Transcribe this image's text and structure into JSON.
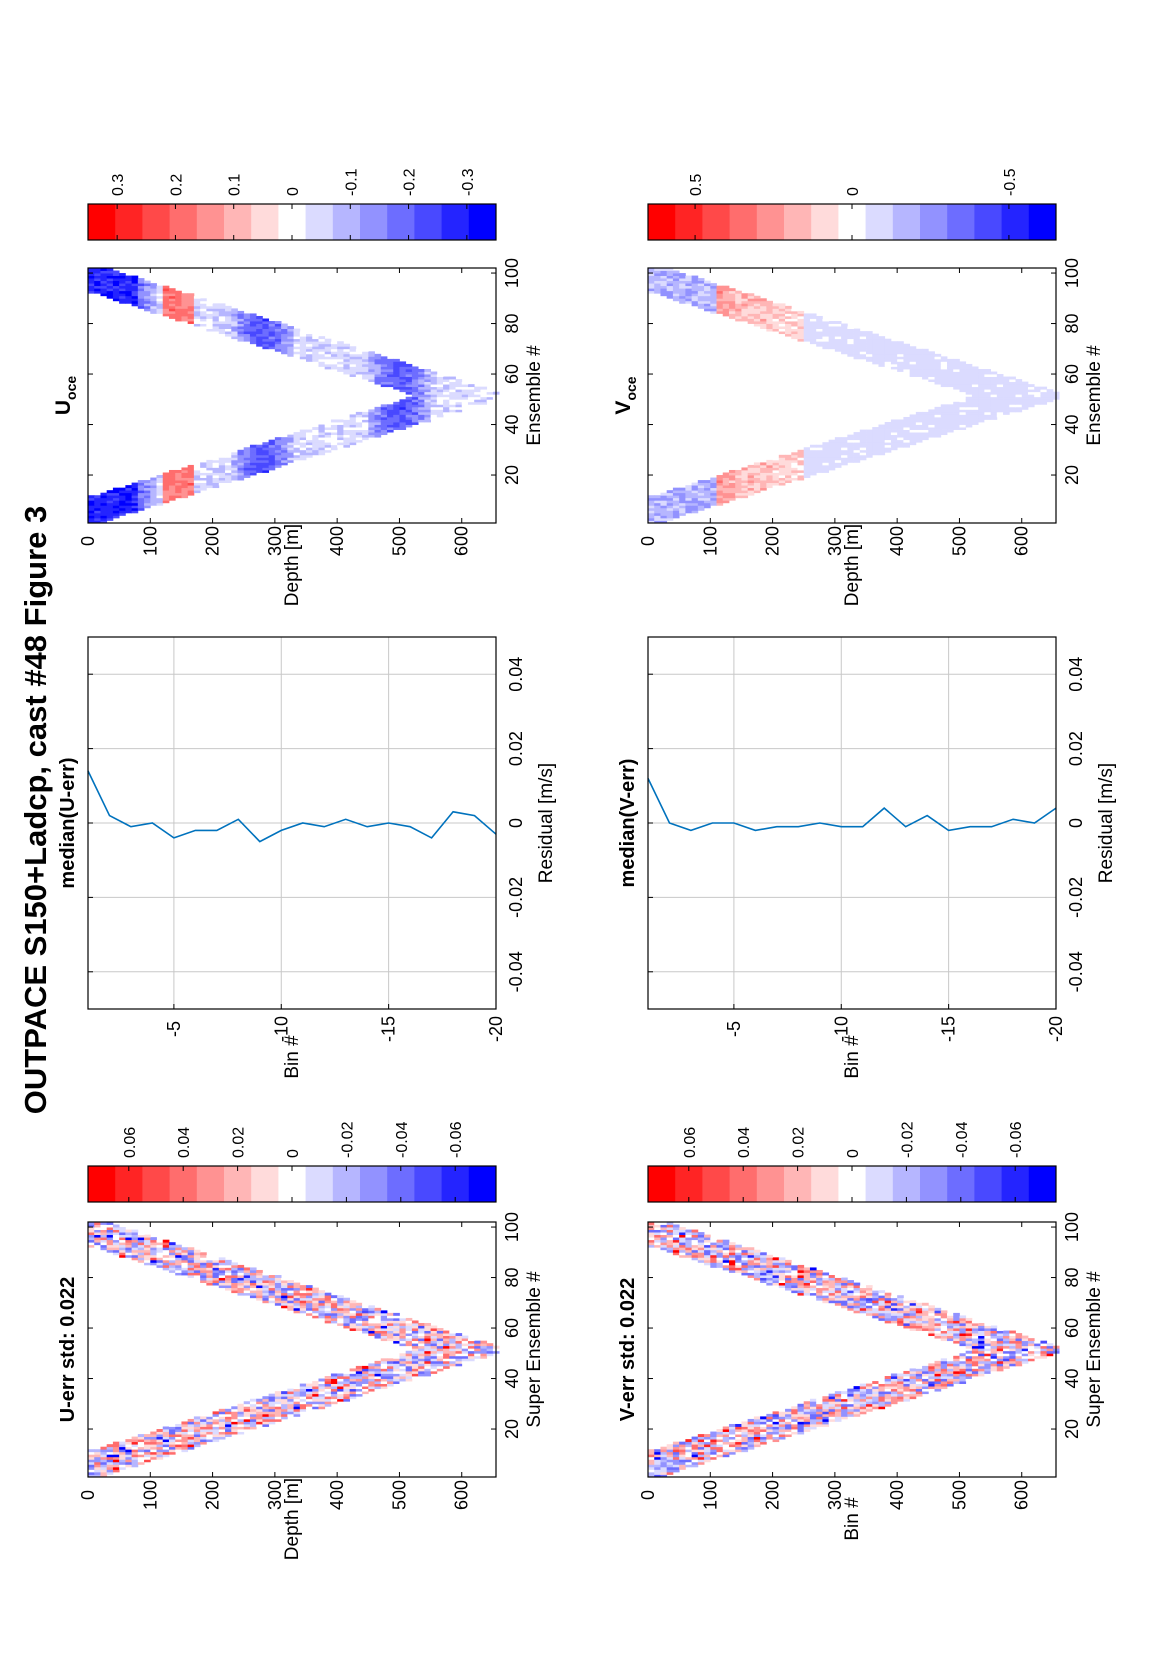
{
  "figure_title": "OUTPACE S150+Ladcp, cast #48  Figure 3",
  "colors": {
    "red": "#ff0000",
    "blue": "#0000ff",
    "line": "#0072bd",
    "grid": "#c8c8c8"
  },
  "chart_data": [
    {
      "id": "u-err-map",
      "type": "heatmap",
      "title": "U-err std: 0.022",
      "xlabel": "Super Ensemble #",
      "ylabel": "Depth [m]",
      "xticks": [
        20,
        40,
        60,
        80,
        100
      ],
      "yticks": [
        0,
        100,
        200,
        300,
        400,
        500,
        600
      ],
      "xlim": [
        1,
        102
      ],
      "ylim": [
        0,
        655
      ],
      "pattern": {
        "turn_ensemble": 51,
        "max_depth": 650,
        "band_width": 130
      }
    },
    {
      "id": "u-err-colorbar",
      "type": "colorbar",
      "range": [
        -0.075,
        0.075
      ],
      "ticks": [
        0.06,
        0.04,
        0.02,
        0,
        -0.02,
        -0.04,
        -0.06
      ],
      "tick_labels": [
        "0.06",
        "0.04",
        "0.02",
        "0",
        "-0.02",
        "-0.04",
        "-0.06"
      ]
    },
    {
      "id": "median-u-err",
      "type": "line",
      "title": "median(U-err)",
      "xlabel": "Residual [m/s]",
      "ylabel": "Bin #",
      "xticks": [
        -0.04,
        -0.02,
        0,
        0.02,
        0.04
      ],
      "yticks": [
        -5,
        -10,
        -15,
        -20
      ],
      "xlim": [
        -0.05,
        0.05
      ],
      "ylim": [
        -1,
        -20
      ],
      "grid": true,
      "series": [
        {
          "bins": [
            -1,
            -2,
            -3,
            -4,
            -5,
            -6,
            -7,
            -8,
            -9,
            -10,
            -11,
            -12,
            -13,
            -14,
            -15,
            -16,
            -17,
            -18,
            -19,
            -20
          ],
          "values": [
            0.014,
            0.002,
            -0.001,
            0.0,
            -0.004,
            -0.002,
            -0.002,
            0.001,
            -0.005,
            -0.002,
            0.0,
            -0.001,
            0.001,
            -0.001,
            0.0,
            -0.001,
            -0.004,
            0.003,
            0.002,
            -0.003
          ]
        }
      ]
    },
    {
      "id": "u-oce-map",
      "type": "heatmap",
      "title": "U",
      "title_subscript": "oce",
      "xlabel": "Ensemble #",
      "ylabel": "Depth [m]",
      "xticks": [
        20,
        40,
        60,
        80,
        100
      ],
      "yticks": [
        0,
        100,
        200,
        300,
        400,
        500,
        600
      ],
      "xlim": [
        1,
        102
      ],
      "ylim": [
        0,
        655
      ],
      "pattern": {
        "turn_ensemble": 51,
        "max_depth": 650,
        "band_width": 130
      }
    },
    {
      "id": "u-oce-colorbar",
      "type": "colorbar",
      "range": [
        -0.35,
        0.35
      ],
      "ticks": [
        0.3,
        0.2,
        0.1,
        0,
        -0.1,
        -0.2,
        -0.3
      ],
      "tick_labels": [
        "0.3",
        "0.2",
        "0.1",
        "0",
        "-0.1",
        "-0.2",
        "-0.3"
      ]
    },
    {
      "id": "v-err-map",
      "type": "heatmap",
      "title": "V-err std: 0.022",
      "xlabel": "Super Ensemble #",
      "ylabel": "Bin #",
      "xticks": [
        20,
        40,
        60,
        80,
        100
      ],
      "yticks": [
        0,
        100,
        200,
        300,
        400,
        500,
        600
      ],
      "xlim": [
        1,
        102
      ],
      "ylim": [
        0,
        655
      ],
      "pattern": {
        "turn_ensemble": 51,
        "max_depth": 650,
        "band_width": 130
      }
    },
    {
      "id": "v-err-colorbar",
      "type": "colorbar",
      "range": [
        -0.075,
        0.075
      ],
      "ticks": [
        0.06,
        0.04,
        0.02,
        0,
        -0.02,
        -0.04,
        -0.06
      ],
      "tick_labels": [
        "0.06",
        "0.04",
        "0.02",
        "0",
        "-0.02",
        "-0.04",
        "-0.06"
      ]
    },
    {
      "id": "median-v-err",
      "type": "line",
      "title": "median(V-err)",
      "xlabel": "Residual [m/s]",
      "ylabel": "Bin #",
      "xticks": [
        -0.04,
        -0.02,
        0,
        0.02,
        0.04
      ],
      "yticks": [
        -5,
        -10,
        -15,
        -20
      ],
      "xlim": [
        -0.05,
        0.05
      ],
      "ylim": [
        -1,
        -20
      ],
      "grid": true,
      "series": [
        {
          "bins": [
            -1,
            -2,
            -3,
            -4,
            -5,
            -6,
            -7,
            -8,
            -9,
            -10,
            -11,
            -12,
            -13,
            -14,
            -15,
            -16,
            -17,
            -18,
            -19,
            -20
          ],
          "values": [
            0.012,
            0.0,
            -0.002,
            0.0,
            0.0,
            -0.002,
            -0.001,
            -0.001,
            0.0,
            -0.001,
            -0.001,
            0.004,
            -0.001,
            0.002,
            -0.002,
            -0.001,
            -0.001,
            0.001,
            0.0,
            0.004
          ]
        }
      ]
    },
    {
      "id": "v-oce-map",
      "type": "heatmap",
      "title": "V",
      "title_subscript": "oce",
      "xlabel": "Ensemble #",
      "ylabel": "Depth [m]",
      "xticks": [
        20,
        40,
        60,
        80,
        100
      ],
      "yticks": [
        0,
        100,
        200,
        300,
        400,
        500,
        600
      ],
      "xlim": [
        1,
        102
      ],
      "ylim": [
        0,
        655
      ],
      "pattern": {
        "turn_ensemble": 51,
        "max_depth": 650,
        "band_width": 130
      }
    },
    {
      "id": "v-oce-colorbar",
      "type": "colorbar",
      "range": [
        -0.65,
        0.65
      ],
      "ticks": [
        0.5,
        0,
        -0.5
      ],
      "tick_labels": [
        "0.5",
        "0",
        "-0.5"
      ]
    }
  ]
}
